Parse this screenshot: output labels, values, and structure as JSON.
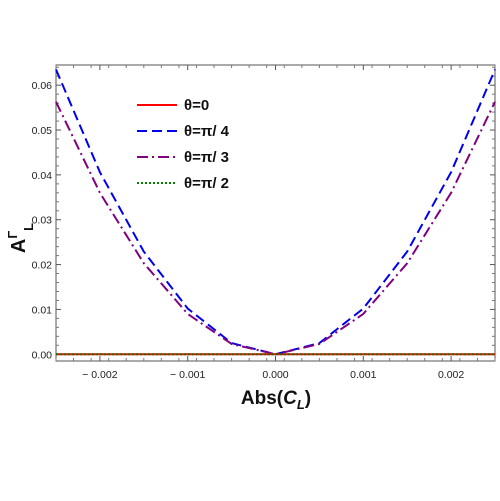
{
  "chart_data": {
    "type": "line",
    "xlabel": "Abs(C_L)",
    "xlabel_parts": {
      "base": "Abs(",
      "var": "C",
      "sub": "L",
      "close": ")"
    },
    "ylabel": "A^Γ_L",
    "ylabel_parts": {
      "base": "A",
      "sup": "Γ",
      "sub": "L"
    },
    "xlim": [
      -0.0025,
      0.0025
    ],
    "ylim": [
      -0.0015,
      0.0645
    ],
    "x_ticks": [
      -0.002,
      -0.001,
      0.0,
      0.001,
      0.002
    ],
    "x_tick_labels": [
      "− 0.002",
      "− 0.001",
      "0.000",
      "0.001",
      "0.002"
    ],
    "y_ticks": [
      0.0,
      0.01,
      0.02,
      0.03,
      0.04,
      0.05,
      0.06
    ],
    "y_tick_labels": [
      "0.00",
      "0.01",
      "0.02",
      "0.03",
      "0.04",
      "0.05",
      "0.06"
    ],
    "grid": false,
    "legend_position": "top-left",
    "x": [
      -0.0025,
      -0.002,
      -0.0015,
      -0.001,
      -0.0005,
      0.0,
      0.0005,
      0.001,
      0.0015,
      0.002,
      0.0025
    ],
    "series": [
      {
        "name": "θ=0",
        "values": [
          0,
          0,
          0,
          0,
          0,
          0,
          0,
          0,
          0,
          0,
          0
        ],
        "color": "#ff0000",
        "dash": "solid"
      },
      {
        "name": "θ=π/ 4",
        "values": [
          0.0635,
          0.0406,
          0.0229,
          0.0102,
          0.0025,
          0.0,
          0.0025,
          0.0102,
          0.0229,
          0.0406,
          0.0635
        ],
        "color": "#0000ee",
        "dash": "dashed"
      },
      {
        "name": "θ=π/ 3",
        "values": [
          0.0563,
          0.036,
          0.0203,
          0.009,
          0.0023,
          0.0,
          0.0023,
          0.009,
          0.0203,
          0.036,
          0.0563
        ],
        "color": "#800080",
        "dash": "dashdot"
      },
      {
        "name": "θ=π/ 2",
        "values": [
          0,
          0,
          0,
          0,
          0,
          0,
          0,
          0,
          0,
          0,
          0
        ],
        "color": "#008000",
        "dash": "dotted"
      }
    ]
  }
}
